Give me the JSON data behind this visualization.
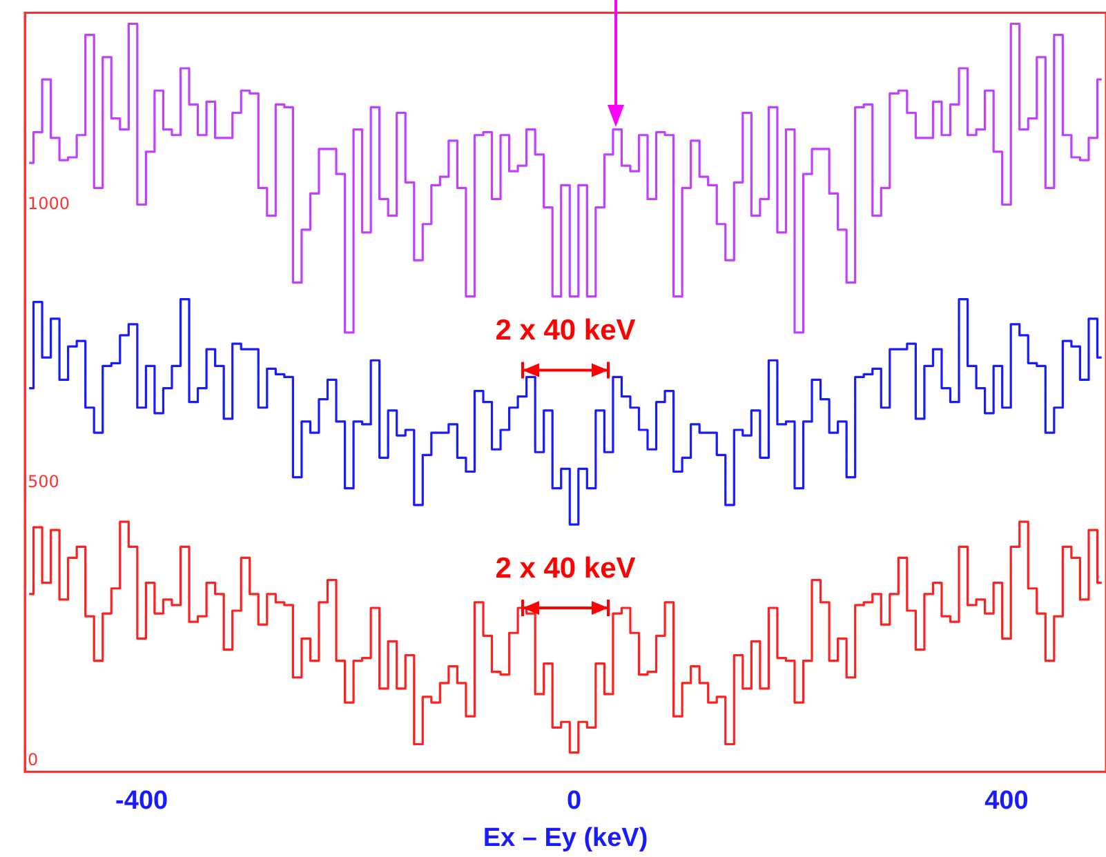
{
  "chart_data": {
    "type": "step",
    "xlabel": "Ex – Ey (keV)",
    "x": [
      -504,
      -496,
      -488,
      -480,
      -472,
      -464,
      -456,
      -448,
      -440,
      -432,
      -424,
      -416,
      -408,
      -400,
      -392,
      -384,
      -376,
      -368,
      -360,
      -352,
      -344,
      -336,
      -328,
      -320,
      -312,
      -304,
      -296,
      -288,
      -280,
      -272,
      -264,
      -256,
      -248,
      -240,
      -232,
      -224,
      -216,
      -208,
      -200,
      -192,
      -184,
      -176,
      -168,
      -160,
      -152,
      -144,
      -136,
      -128,
      -120,
      -112,
      -104,
      -96,
      -88,
      -80,
      -72,
      -64,
      -56,
      -48,
      -40,
      -32,
      -24,
      -16,
      -8,
      0,
      8,
      16,
      24,
      32,
      40,
      48,
      56,
      64,
      72,
      80,
      88,
      96,
      104,
      112,
      120,
      128,
      136,
      144,
      152,
      160,
      168,
      176,
      184,
      192,
      200,
      208,
      216,
      224,
      232,
      240,
      248,
      256,
      264,
      272,
      280,
      288,
      296,
      304,
      312,
      320,
      328,
      336,
      344,
      352,
      360,
      368,
      376,
      384,
      392,
      400,
      408,
      416,
      424,
      432,
      440,
      448,
      456,
      464,
      472,
      480,
      488
    ],
    "series": [
      {
        "color": "#c040ff",
        "values": [
          1075,
          1130,
          1225,
          1120,
          1080,
          1085,
          1125,
          1305,
          1030,
          1265,
          1155,
          1135,
          1325,
          1000,
          1095,
          1205,
          1135,
          1125,
          1245,
          1180,
          1125,
          1185,
          1120,
          1120,
          1165,
          1205,
          1200,
          1030,
          980,
          1180,
          1175,
          860,
          955,
          1020,
          1100,
          1100,
          1055,
          770,
          1135,
          950,
          1175,
          1010,
          980,
          1165,
          1040,
          900,
          965,
          1035,
          1050,
          1115,
          1030,
          835,
          1125,
          1130,
          1010,
          1125,
          1060,
          1070,
          1135,
          1090,
          995,
          835,
          1035,
          835,
          1035,
          835,
          995,
          1090,
          1135,
          1070,
          1060,
          1125,
          1010,
          1130,
          1125,
          835,
          1030,
          1115,
          1050,
          1035,
          965,
          900,
          1040,
          1165,
          980,
          1010,
          1175,
          950,
          1135,
          770,
          1055,
          1100,
          1100,
          1020,
          955,
          860,
          1175,
          1180,
          980,
          1030,
          1200,
          1205,
          1165,
          1120,
          1120,
          1185,
          1125,
          1180,
          1245,
          1125,
          1135,
          1205,
          1095,
          1000,
          1325,
          1135,
          1155,
          1265,
          1030,
          1305,
          1125,
          1085,
          1080,
          1120,
          1225
        ]
      },
      {
        "color": "#1a1aff",
        "values": [
          670,
          825,
          725,
          795,
          685,
          745,
          755,
          635,
          590,
          710,
          715,
          765,
          785,
          635,
          710,
          625,
          670,
          710,
          830,
          645,
          670,
          740,
          710,
          615,
          750,
          740,
          740,
          635,
          705,
          695,
          690,
          510,
          610,
          590,
          650,
          685,
          610,
          490,
          610,
          605,
          720,
          545,
          630,
          585,
          595,
          460,
          550,
          590,
          590,
          605,
          545,
          520,
          665,
          645,
          560,
          595,
          635,
          655,
          690,
          555,
          630,
          490,
          525,
          425,
          525,
          490,
          630,
          555,
          690,
          655,
          635,
          595,
          560,
          645,
          665,
          520,
          545,
          605,
          590,
          590,
          550,
          460,
          595,
          585,
          630,
          545,
          720,
          605,
          610,
          490,
          610,
          685,
          650,
          590,
          610,
          510,
          690,
          695,
          705,
          635,
          740,
          740,
          750,
          615,
          710,
          740,
          670,
          645,
          830,
          710,
          670,
          625,
          710,
          635,
          785,
          765,
          715,
          710,
          590,
          635,
          755,
          745,
          685,
          795,
          725
        ]
      },
      {
        "color": "#ff2020",
        "values": [
          300,
          420,
          320,
          415,
          290,
          365,
          385,
          260,
          180,
          265,
          310,
          430,
          385,
          220,
          320,
          265,
          290,
          280,
          385,
          250,
          260,
          320,
          300,
          200,
          270,
          365,
          300,
          245,
          300,
          285,
          280,
          150,
          220,
          180,
          285,
          325,
          180,
          105,
          180,
          185,
          275,
          130,
          215,
          130,
          190,
          30,
          115,
          105,
          140,
          170,
          140,
          80,
          285,
          225,
          160,
          155,
          230,
          275,
          265,
          120,
          175,
          60,
          70,
          15,
          70,
          60,
          175,
          120,
          265,
          275,
          230,
          155,
          160,
          225,
          285,
          80,
          140,
          170,
          140,
          105,
          115,
          30,
          190,
          130,
          215,
          130,
          275,
          185,
          180,
          105,
          180,
          325,
          285,
          180,
          220,
          150,
          280,
          285,
          300,
          245,
          300,
          365,
          270,
          200,
          300,
          320,
          260,
          250,
          385,
          280,
          290,
          265,
          320,
          220,
          385,
          430,
          310,
          265,
          180,
          260,
          385,
          365,
          290,
          415,
          320
        ]
      }
    ],
    "xlim": [
      -508,
      492
    ],
    "xticks": [
      -400,
      0,
      400
    ],
    "ylim": [
      -20,
      1345
    ],
    "yticks": [
      0,
      500,
      1000
    ],
    "annotations": [
      "2 x 40 keV",
      "2 x 40 keV"
    ]
  }
}
